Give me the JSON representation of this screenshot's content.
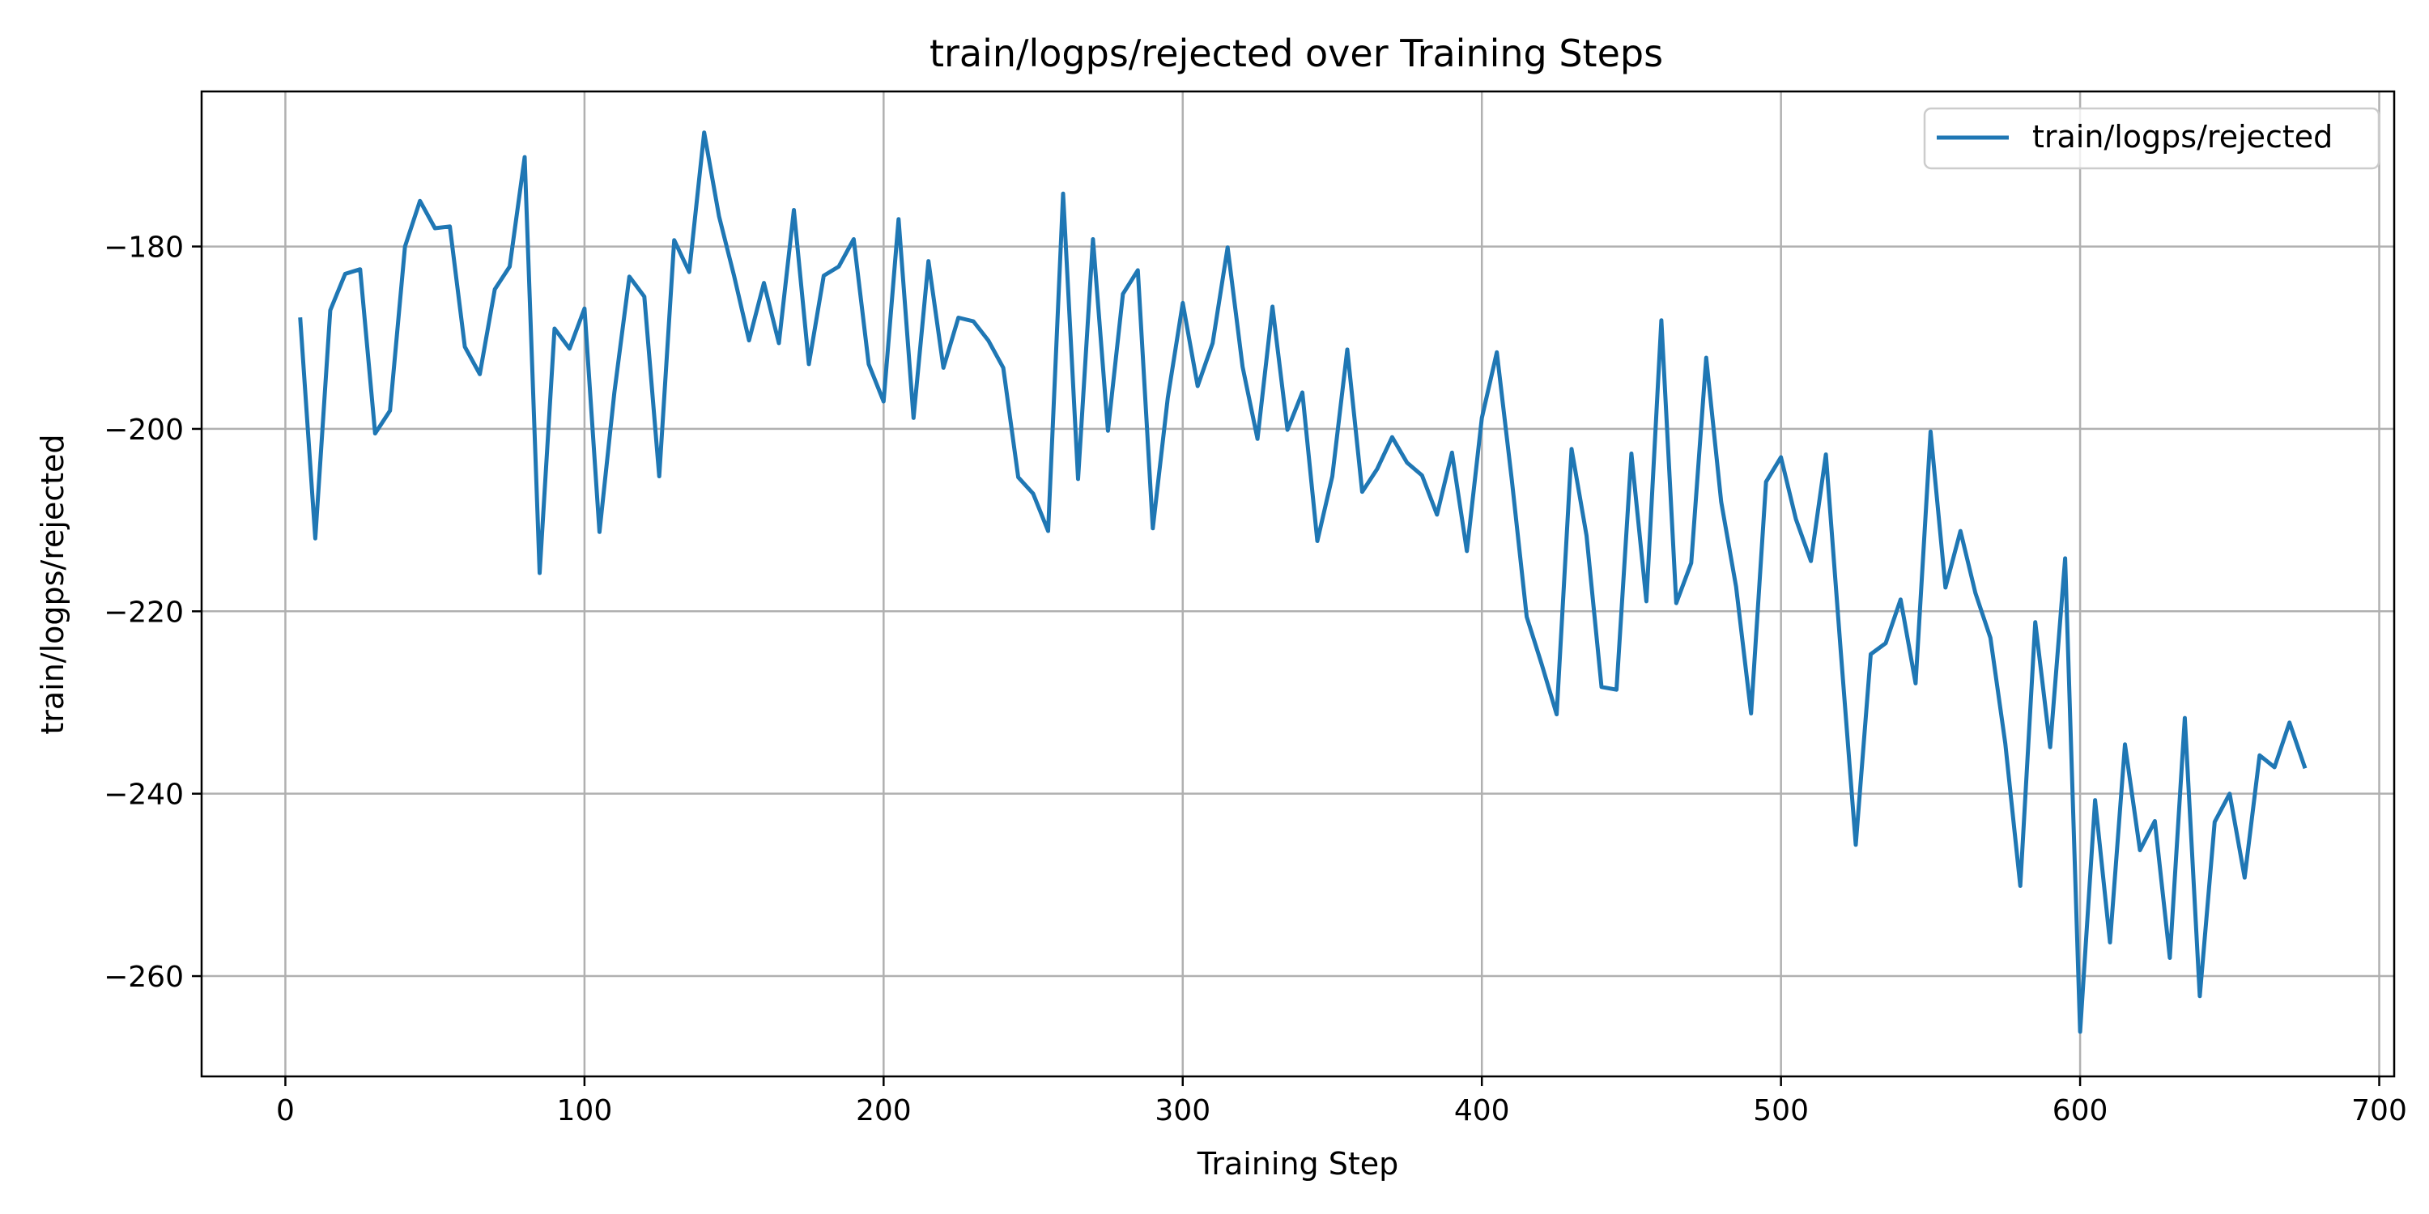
{
  "chart_data": {
    "type": "line",
    "title": "train/logps/rejected over Training Steps",
    "xlabel": "Training Step",
    "ylabel": "train/logps/rejected",
    "xlim": [
      -28,
      705
    ],
    "ylim": [
      -271,
      -163
    ],
    "xticks": [
      0,
      100,
      200,
      300,
      400,
      500,
      600,
      700
    ],
    "yticks": [
      -180,
      -200,
      -220,
      -240,
      -260
    ],
    "ytick_labels": [
      "−180",
      "−200",
      "−220",
      "−240",
      "−260"
    ],
    "grid": true,
    "legend": "top-right",
    "series": [
      {
        "name": "train/logps/rejected",
        "color": "#1f77b4",
        "x": [
          5,
          10,
          15,
          20,
          25,
          30,
          35,
          40,
          45,
          50,
          55,
          60,
          65,
          70,
          75,
          80,
          85,
          90,
          95,
          100,
          105,
          110,
          115,
          120,
          125,
          130,
          135,
          140,
          145,
          150,
          155,
          160,
          165,
          170,
          175,
          180,
          185,
          190,
          195,
          200,
          205,
          210,
          215,
          220,
          225,
          230,
          235,
          240,
          245,
          250,
          255,
          260,
          265,
          270,
          275,
          280,
          285,
          290,
          295,
          300,
          305,
          310,
          315,
          320,
          325,
          330,
          335,
          340,
          345,
          350,
          355,
          360,
          365,
          370,
          375,
          380,
          385,
          390,
          395,
          400,
          405,
          410,
          415,
          420,
          425,
          430,
          435,
          440,
          445,
          450,
          455,
          460,
          465,
          470,
          475,
          480,
          485,
          490,
          495,
          500,
          505,
          510,
          515,
          520,
          525,
          530,
          535,
          540,
          545,
          550,
          555,
          560,
          565,
          570,
          575,
          580,
          585,
          590,
          595,
          600,
          605,
          610,
          615,
          620,
          625,
          630,
          635,
          640,
          645,
          650,
          655,
          660,
          665,
          670,
          675
        ],
        "y": [
          -188,
          -212,
          -187,
          -183,
          -182.5,
          -200.5,
          -198,
          -180,
          -175,
          -178,
          -177.8,
          -191,
          -194,
          -184.7,
          -182.2,
          -170.2,
          -215.8,
          -189,
          -191.2,
          -186.8,
          -211.3,
          -196,
          -183.3,
          -185.5,
          -205.2,
          -179.3,
          -182.8,
          -167.5,
          -176.7,
          -183.2,
          -190.3,
          -184,
          -190.6,
          -176,
          -192.9,
          -183.2,
          -182.2,
          -179.2,
          -192.9,
          -197,
          -177,
          -198.8,
          -181.6,
          -193.3,
          -187.8,
          -188.2,
          -190.3,
          -193.3,
          -205.3,
          -207.1,
          -211.2,
          -174.2,
          -205.5,
          -179.2,
          -200.2,
          -185.2,
          -182.6,
          -210.9,
          -196.6,
          -186.2,
          -195.3,
          -190.6,
          -180.1,
          -193.2,
          -201.1,
          -186.6,
          -200.1,
          -196,
          -212.3,
          -205.2,
          -191.3,
          -206.9,
          -204.4,
          -200.9,
          -203.7,
          -205.1,
          -209.4,
          -202.6,
          -213.4,
          -198.8,
          -191.6,
          -205.6,
          -220.6,
          -225.8,
          -231.3,
          -202.2,
          -211.7,
          -228.3,
          -228.6,
          -202.7,
          -218.9,
          -188.1,
          -219.1,
          -214.7,
          -192.2,
          -208,
          -217.3,
          -231.2,
          -205.8,
          -203.1,
          -209.9,
          -214.5,
          -202.8,
          -224.4,
          -245.6,
          -224.7,
          -223.5,
          -218.7,
          -227.9,
          -200.3,
          -217.4,
          -211.2,
          -218,
          -222.9,
          -234.5,
          -250.1,
          -221.2,
          -234.9,
          -214.2,
          -266.1,
          -240.7,
          -256.3,
          -234.6,
          -246.2,
          -243,
          -258,
          -231.7,
          -262.2,
          -243.1,
          -240,
          -249.2,
          -235.8,
          -237.1,
          -232.2,
          -237
        ]
      }
    ]
  }
}
